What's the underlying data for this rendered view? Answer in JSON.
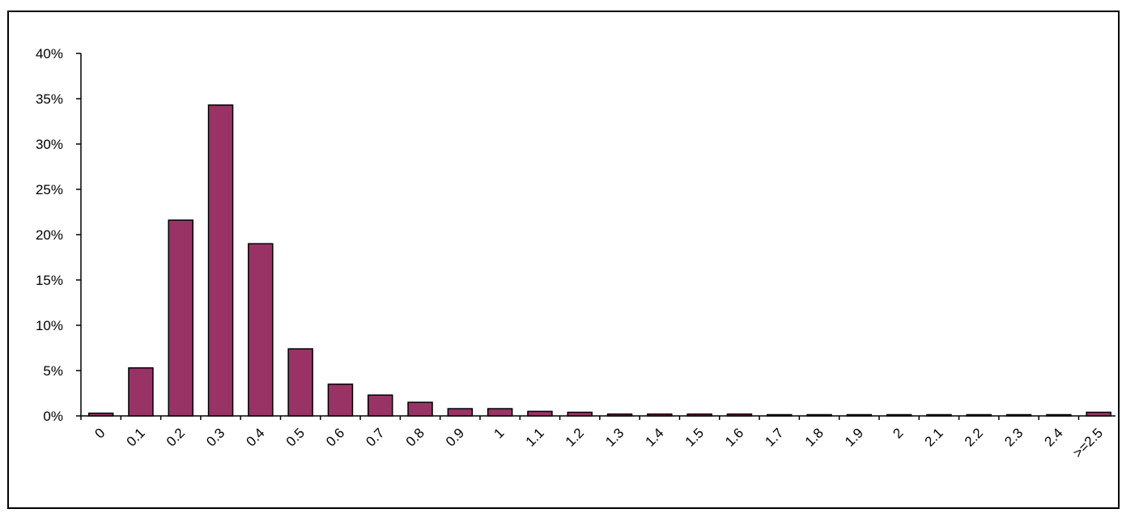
{
  "chart_data": {
    "type": "bar",
    "categories": [
      "0",
      "0.1",
      "0.2",
      "0.3",
      "0.4",
      "0.5",
      "0.6",
      "0.7",
      "0.8",
      "0.9",
      "1",
      "1.1",
      "1.2",
      "1.3",
      "1.4",
      "1.5",
      "1.6",
      "1.7",
      "1.8",
      "1.9",
      "2",
      "2.1",
      "2.2",
      "2.3",
      "2.4",
      ">=2.5"
    ],
    "values": [
      0.3,
      5.3,
      21.6,
      34.3,
      19.0,
      7.4,
      3.5,
      2.3,
      1.5,
      0.8,
      0.8,
      0.5,
      0.4,
      0.2,
      0.2,
      0.2,
      0.2,
      0.1,
      0.1,
      0.05,
      0.1,
      0.1,
      0.05,
      0.1,
      0.05,
      0.4
    ],
    "value_unit": "%",
    "ylim": [
      0,
      40
    ],
    "y_ticks": [
      0,
      5,
      10,
      15,
      20,
      25,
      30,
      35,
      40
    ],
    "y_tick_labels": [
      "0%",
      "5%",
      "10%",
      "15%",
      "20%",
      "25%",
      "30%",
      "35%",
      "40%"
    ],
    "title": "",
    "xlabel": "",
    "ylabel": "",
    "legend": "none",
    "grid": false,
    "colors": {
      "bar_fill": "#993366",
      "bar_stroke": "#000000",
      "axis": "#000000"
    }
  }
}
